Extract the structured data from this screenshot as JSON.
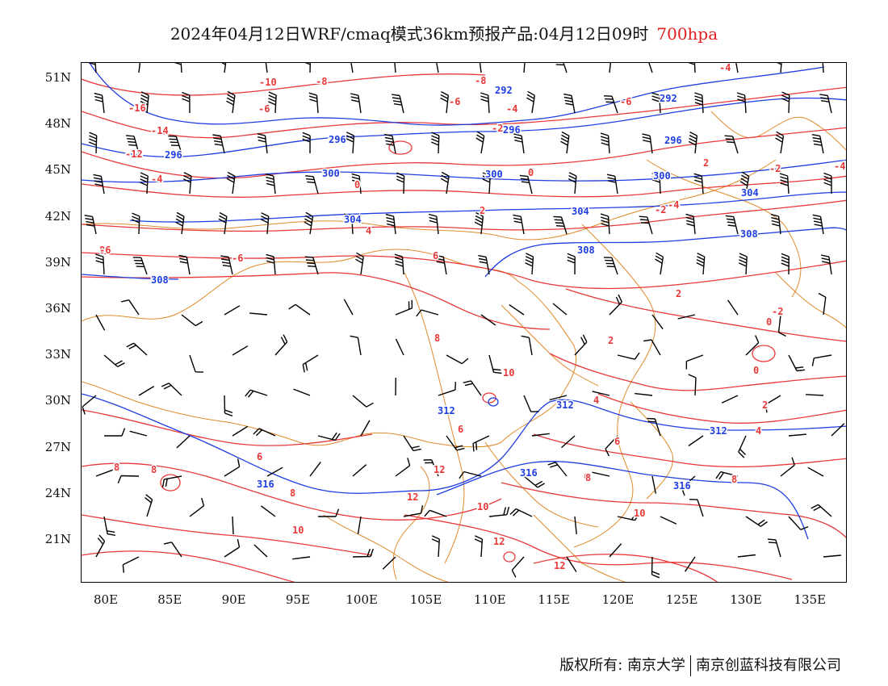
{
  "title": {
    "text": "2024年04月12日WRF/cmaq模式36km预报产品:04月12日09时",
    "level": "700hpa",
    "level_color": "#e02020"
  },
  "map": {
    "lat_labels": [
      "51N",
      "48N",
      "45N",
      "42N",
      "39N",
      "36N",
      "33N",
      "30N",
      "27N",
      "24N",
      "21N"
    ],
    "lon_labels": [
      "80E",
      "85E",
      "90E",
      "95E",
      "100E",
      "105E",
      "110E",
      "115E",
      "120E",
      "125E",
      "130E",
      "135E"
    ],
    "colors": {
      "temperature_contour": "#e8393a",
      "height_contour": "#1f3ee0",
      "boundary": "#e08a2a",
      "wind_barb": "#000000"
    },
    "red_contour_labels": [
      "-16",
      "-14",
      "-12",
      "-10",
      "-8",
      "-6",
      "-4",
      "-2",
      "0",
      "2",
      "4",
      "6",
      "8",
      "10",
      "12"
    ],
    "blue_contour_labels": [
      "292",
      "296",
      "300",
      "304",
      "308",
      "312",
      "316"
    ]
  },
  "footer": {
    "left": "版权所有: 南京大学",
    "right": "南京创蓝科技有限公司"
  }
}
